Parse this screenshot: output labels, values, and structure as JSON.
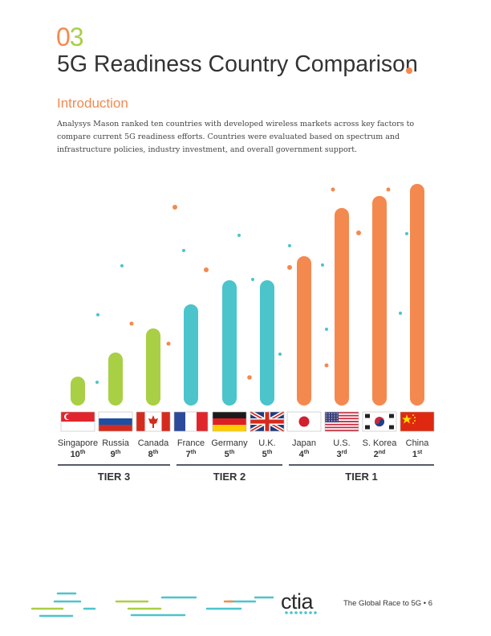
{
  "section_number": {
    "digit_1": "0",
    "digit_2": "3"
  },
  "page_title": "5G Readiness Country Comparison",
  "intro_heading": "Introduction",
  "intro_body": "Analysys Mason ranked ten countries with developed wireless markets across key factors to compare current 5G readiness efforts. Countries were evaluated based on spectrum and infrastructure policies, industry investment, and overall government support.",
  "colors": {
    "orange": "#f4894f",
    "teal": "#4bc4cb",
    "green": "#a9cf45",
    "dark": "#333333"
  },
  "chart_data": {
    "type": "bar",
    "categories": [
      "Singapore",
      "Russia",
      "Canada",
      "France",
      "Germany",
      "U.K.",
      "Japan",
      "U.S.",
      "S. Korea",
      "China"
    ],
    "ranks": [
      {
        "num": "10",
        "suffix": "th"
      },
      {
        "num": "9",
        "suffix": "th"
      },
      {
        "num": "8",
        "suffix": "th"
      },
      {
        "num": "7",
        "suffix": "th"
      },
      {
        "num": "5",
        "suffix": "th"
      },
      {
        "num": "5",
        "suffix": "th"
      },
      {
        "num": "4",
        "suffix": "th"
      },
      {
        "num": "3",
        "suffix": "rd"
      },
      {
        "num": "2",
        "suffix": "nd"
      },
      {
        "num": "1",
        "suffix": "st"
      }
    ],
    "values": [
      1.2,
      2.2,
      3.2,
      4.2,
      5.2,
      5.2,
      6.2,
      8.2,
      8.7,
      9.2
    ],
    "ylim": [
      0,
      10
    ],
    "tier_of_bar": [
      0,
      0,
      0,
      1,
      1,
      1,
      2,
      2,
      2,
      2
    ],
    "flags": [
      "singapore-flag",
      "russia-flag",
      "canada-flag",
      "france-flag",
      "germany-flag",
      "uk-flag",
      "japan-flag",
      "us-flag",
      "south-korea-flag",
      "china-flag"
    ],
    "tiers": [
      {
        "label": "TIER 3",
        "color": "#a9cf45"
      },
      {
        "label": "TIER 2",
        "color": "#4bc4cb"
      },
      {
        "label": "TIER 1",
        "color": "#f4894f"
      }
    ]
  },
  "footer": {
    "text": "The Global Race to 5G  •  6",
    "logo": "ctia"
  }
}
